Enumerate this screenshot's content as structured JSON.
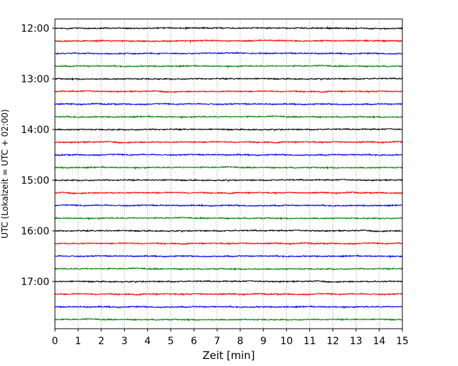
{
  "chart_data": {
    "type": "line",
    "chart_kind": "helicorder (seismogram drum plot)",
    "title": "",
    "xlabel": "Zeit  [min]",
    "ylabel": "UTC (Lokalzeit = UTC + 02:00)",
    "xlim": [
      0,
      15
    ],
    "x_ticks": [
      "0",
      "1",
      "2",
      "3",
      "4",
      "5",
      "6",
      "7",
      "8",
      "9",
      "10",
      "11",
      "12",
      "13",
      "14",
      "15"
    ],
    "y_tick_labels": [
      "12:00",
      "13:00",
      "14:00",
      "15:00",
      "16:00",
      "17:00"
    ],
    "grid": "vertical dotted lines at each minute",
    "legend": "none",
    "trace_colors_cycle": [
      "#000000",
      "#ff0000",
      "#0000ff",
      "#008000"
    ],
    "series": [
      {
        "start": "12:00",
        "color": "#000000"
      },
      {
        "start": "12:15",
        "color": "#ff0000"
      },
      {
        "start": "12:30",
        "color": "#0000ff"
      },
      {
        "start": "12:45",
        "color": "#008000"
      },
      {
        "start": "13:00",
        "color": "#000000"
      },
      {
        "start": "13:15",
        "color": "#ff0000"
      },
      {
        "start": "13:30",
        "color": "#0000ff"
      },
      {
        "start": "13:45",
        "color": "#008000"
      },
      {
        "start": "14:00",
        "color": "#000000"
      },
      {
        "start": "14:15",
        "color": "#ff0000"
      },
      {
        "start": "14:30",
        "color": "#0000ff"
      },
      {
        "start": "14:45",
        "color": "#008000"
      },
      {
        "start": "15:00",
        "color": "#000000"
      },
      {
        "start": "15:15",
        "color": "#ff0000"
      },
      {
        "start": "15:30",
        "color": "#0000ff"
      },
      {
        "start": "15:45",
        "color": "#008000"
      },
      {
        "start": "16:00",
        "color": "#000000"
      },
      {
        "start": "16:15",
        "color": "#ff0000"
      },
      {
        "start": "16:30",
        "color": "#0000ff"
      },
      {
        "start": "16:45",
        "color": "#008000"
      },
      {
        "start": "17:00",
        "color": "#000000"
      },
      {
        "start": "17:15",
        "color": "#ff0000"
      },
      {
        "start": "17:30",
        "color": "#0000ff"
      },
      {
        "start": "17:45",
        "color": "#008000"
      }
    ]
  }
}
